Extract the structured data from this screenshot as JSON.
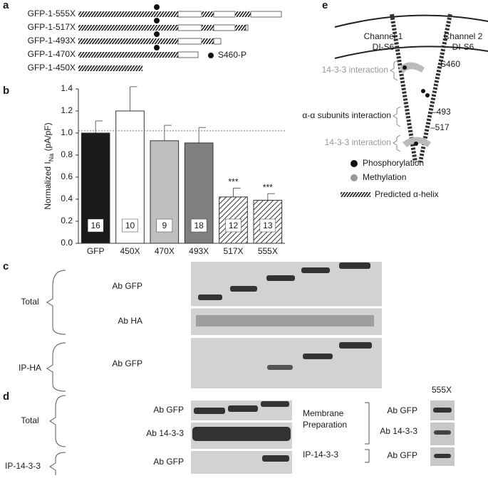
{
  "panel_labels": [
    "a",
    "b",
    "c",
    "d",
    "e"
  ],
  "panel_a": {
    "constructs": [
      "GFP-1-555X",
      "GFP-1-517X",
      "GFP-1-493X",
      "GFP-1-470X",
      "GFP-1-450X"
    ],
    "legend": "S460-P"
  },
  "chart_data": {
    "type": "bar",
    "y_label": "Normalized I",
    "y_label_sub": "Na",
    "y_label_end": " (pA/pF)",
    "categories": [
      "GFP",
      "450X",
      "470X",
      "493X",
      "517X",
      "555X"
    ],
    "values": [
      1.0,
      1.2,
      0.93,
      0.91,
      0.42,
      0.39
    ],
    "errors": [
      0.11,
      0.22,
      0.14,
      0.14,
      0.08,
      0.06
    ],
    "fills": [
      "#1a1a1a",
      "#ffffff",
      "#bfbfbf",
      "#7f7f7f",
      "hatched",
      "hatched"
    ],
    "n_labels": [
      "16",
      "10",
      "9",
      "18",
      "12",
      "13"
    ],
    "annotations": [
      null,
      null,
      null,
      null,
      "***",
      "***"
    ],
    "reference_line": 1.02,
    "ylim": [
      0,
      1.4
    ],
    "yticks": [
      {
        "value": 0,
        "label": "0.0"
      },
      0.2,
      0.4,
      0.6,
      0.8,
      {
        "value": 1,
        "label": "1.0"
      },
      1.2,
      1.4
    ]
  },
  "panel_c": {
    "groups": [
      "Total",
      "IP-HA"
    ],
    "blots": [
      "Ab GFP",
      "Ab HA",
      "Ab GFP"
    ]
  },
  "panel_d": {
    "groups": [
      "Total",
      "IP-14-3-3"
    ],
    "blots": [
      "Ab GFP",
      "Ab 14-3-3",
      "Ab GFP"
    ],
    "side_labels": [
      [
        "Membrane",
        "Preparation"
      ],
      [
        "IP-14-3-3"
      ]
    ],
    "inset_title": "555X",
    "inset_blots": [
      "Ab GFP",
      "Ab 14-3-3",
      "Ab GFP"
    ]
  },
  "panel_e": {
    "channel_1": [
      "Channel 1",
      "DI-S6"
    ],
    "channel_2": [
      "Channel 2",
      "DI-S6"
    ],
    "interaction_top": "14-3-3 interaction",
    "site": "S460",
    "dimer": "α-α subunits interaction",
    "marker_1": "–493",
    "marker_2": "–517",
    "interaction_bottom": "14-3-3 interaction",
    "legend": [
      "Phosphorylation",
      "Methylation",
      "Predicted α-helix"
    ]
  }
}
